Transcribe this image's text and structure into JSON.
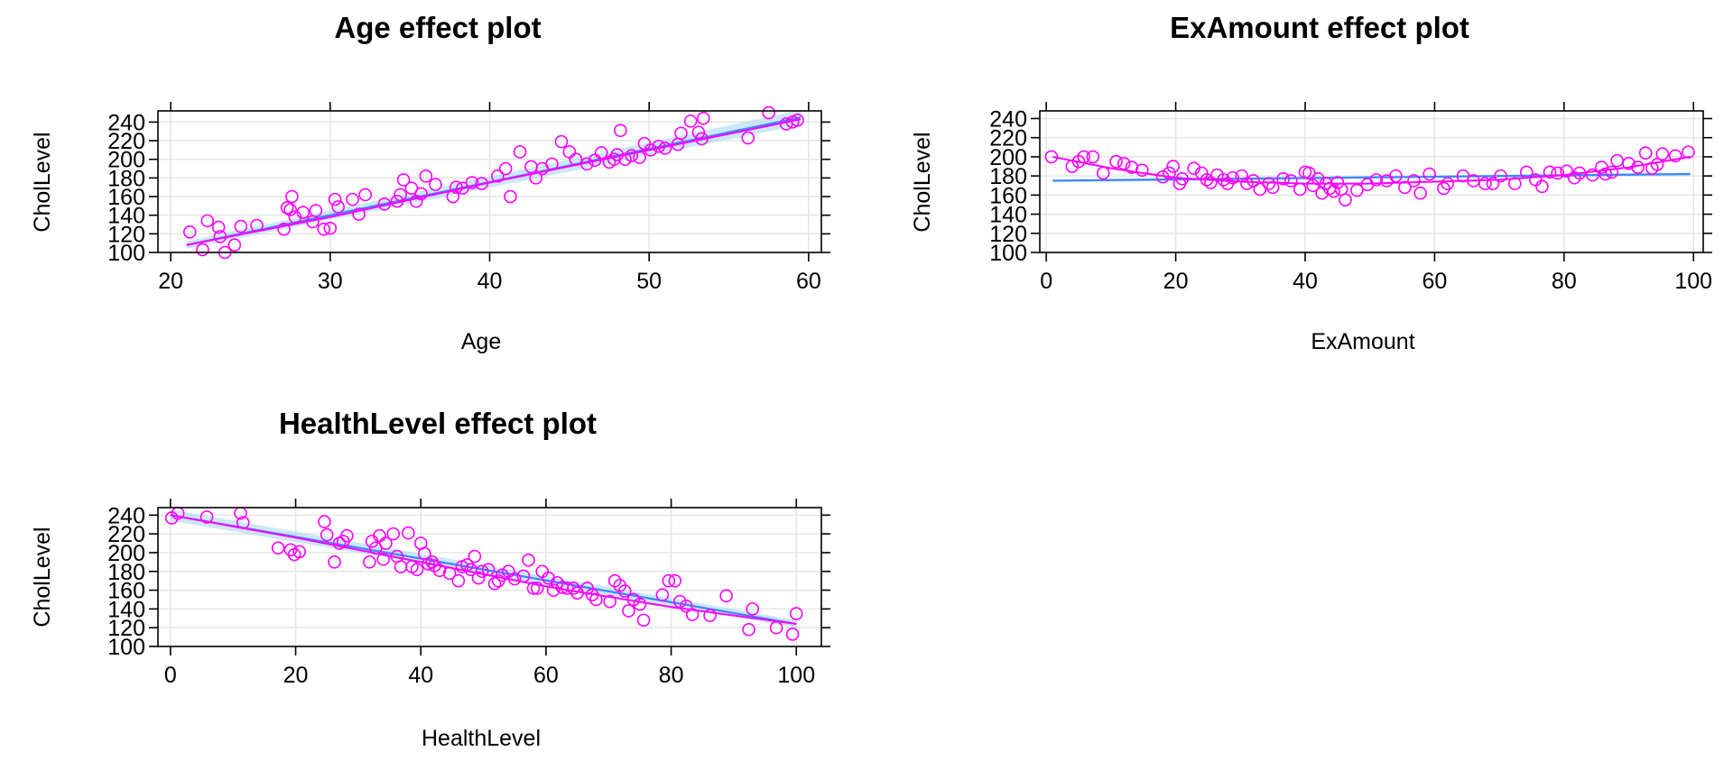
{
  "colors": {
    "points": "#ff00ff",
    "fit": "#3a87ff",
    "band": "#a8d8f0",
    "smooth": "#ff00ff",
    "grid": "#e5e5e5"
  },
  "chart_data": [
    {
      "type": "scatter",
      "title": "Age effect plot",
      "xlabel": "Age",
      "ylabel": "CholLevel",
      "xticks": [
        20,
        30,
        40,
        50,
        60
      ],
      "yticks": [
        100,
        120,
        140,
        160,
        180,
        200,
        220,
        240
      ],
      "xlim": [
        19.2,
        60.8
      ],
      "ylim": [
        100,
        252
      ],
      "grid": true,
      "fit": {
        "x": [
          21,
          59.5
        ],
        "y": [
          108,
          245
        ],
        "band": [
          4,
          8
        ]
      },
      "smooth": {
        "x": [
          21,
          30,
          40,
          50,
          59.5
        ],
        "y": [
          108,
          138,
          175,
          210,
          243
        ]
      },
      "points": {
        "x": [
          21.2,
          22.0,
          22.3,
          23.0,
          23.1,
          23.4,
          24.0,
          24.4,
          25.4,
          27.1,
          27.3,
          27.5,
          27.6,
          27.8,
          28.3,
          28.9,
          29.1,
          29.6,
          30.0,
          30.3,
          30.5,
          31.4,
          31.8,
          32.2,
          33.4,
          34.2,
          34.4,
          34.6,
          35.1,
          35.4,
          35.7,
          36.0,
          36.6,
          37.7,
          37.9,
          38.3,
          38.9,
          39.5,
          40.5,
          41.0,
          41.3,
          41.9,
          42.6,
          42.9,
          43.3,
          43.9,
          44.5,
          45.0,
          45.4,
          46.1,
          46.6,
          47.0,
          47.5,
          47.8,
          48.0,
          48.2,
          48.5,
          48.9,
          49.4,
          49.7,
          50.1,
          50.6,
          51.0,
          51.8,
          52.0,
          52.6,
          53.1,
          53.3,
          53.4,
          56.2,
          57.5,
          58.6,
          59.0,
          59.3
        ],
        "y": [
          122,
          103,
          134,
          127,
          117,
          100,
          108,
          128,
          129,
          125,
          148,
          146,
          160,
          138,
          143,
          133,
          145,
          125,
          126,
          157,
          149,
          157,
          141,
          162,
          152,
          155,
          162,
          178,
          169,
          155,
          163,
          182,
          173,
          160,
          170,
          169,
          175,
          174,
          182,
          190,
          160,
          208,
          192,
          180,
          190,
          195,
          219,
          208,
          200,
          195,
          199,
          207,
          197,
          200,
          205,
          231,
          200,
          204,
          202,
          217,
          210,
          214,
          212,
          216,
          228,
          241,
          229,
          222,
          244,
          223,
          250,
          238,
          240,
          242
        ]
      }
    },
    {
      "type": "scatter",
      "title": "ExAmount effect plot",
      "xlabel": "ExAmount",
      "ylabel": "CholLevel",
      "xticks": [
        0,
        20,
        40,
        60,
        80,
        100
      ],
      "yticks": [
        100,
        120,
        140,
        160,
        180,
        200,
        220,
        240
      ],
      "xlim": [
        -1,
        101.5
      ],
      "ylim": [
        100,
        248
      ],
      "grid": true,
      "fit": {
        "x": [
          1,
          99.5
        ],
        "y": [
          175,
          182
        ],
        "band": [
          1.5,
          1.5
        ]
      },
      "smooth": {
        "x": [
          1,
          10,
          20,
          30,
          40,
          50,
          60,
          70,
          80,
          90,
          99.5
        ],
        "y": [
          200,
          188,
          178,
          174,
          172,
          172,
          174,
          176,
          181,
          189,
          200
        ]
      },
      "points": {
        "x": [
          0.8,
          4.0,
          5.0,
          5.8,
          7.2,
          8.8,
          10.8,
          12.0,
          13.2,
          14.8,
          18.0,
          19.0,
          19.6,
          20.6,
          21.0,
          22.8,
          24.0,
          24.8,
          25.4,
          26.4,
          27.4,
          28.0,
          28.8,
          30.2,
          31.0,
          32.0,
          33.0,
          34.4,
          35.0,
          36.6,
          37.8,
          39.2,
          40.0,
          40.6,
          41.2,
          42.0,
          42.6,
          43.2,
          43.8,
          44.4,
          45.0,
          45.6,
          46.2,
          48.0,
          49.6,
          51.0,
          52.6,
          54.0,
          55.4,
          56.8,
          57.8,
          59.2,
          61.4,
          62.0,
          64.4,
          66.0,
          67.8,
          69.0,
          70.2,
          72.4,
          74.2,
          75.6,
          76.6,
          77.8,
          79.0,
          80.4,
          81.6,
          82.4,
          84.4,
          85.8,
          86.4,
          87.4,
          88.2,
          90.0,
          91.4,
          92.6,
          93.6,
          94.4,
          95.2,
          97.2,
          99.2
        ],
        "y": [
          200,
          190,
          195,
          200,
          200,
          183,
          195,
          193,
          189,
          186,
          179,
          183,
          190,
          172,
          177,
          188,
          183,
          176,
          173,
          181,
          176,
          172,
          178,
          180,
          172,
          175,
          166,
          172,
          168,
          177,
          175,
          166,
          184,
          183,
          170,
          177,
          162,
          172,
          167,
          164,
          173,
          166,
          155,
          165,
          171,
          176,
          175,
          180,
          168,
          175,
          162,
          182,
          167,
          172,
          180,
          175,
          172,
          172,
          180,
          172,
          184,
          176,
          169,
          184,
          183,
          185,
          178,
          183,
          181,
          189,
          182,
          184,
          196,
          193,
          189,
          204,
          188,
          192,
          203,
          201,
          205
        ]
      }
    },
    {
      "type": "scatter",
      "title": "HealthLevel effect plot",
      "xlabel": "HealthLevel",
      "ylabel": "CholLevel",
      "xticks": [
        0,
        20,
        40,
        60,
        80,
        100
      ],
      "yticks": [
        100,
        120,
        140,
        160,
        180,
        200,
        220,
        240
      ],
      "xlim": [
        -2,
        104
      ],
      "ylim": [
        100,
        248
      ],
      "grid": true,
      "fit": {
        "x": [
          0,
          100
        ],
        "y": [
          240,
          124
        ],
        "band": [
          6,
          4
        ]
      },
      "smooth": {
        "x": [
          0,
          20,
          40,
          60,
          80,
          100
        ],
        "y": [
          240,
          216,
          190,
          164,
          142,
          124
        ]
      },
      "points": {
        "x": [
          0.2,
          1.2,
          5.8,
          11.2,
          11.6,
          17.2,
          19.2,
          19.8,
          20.6,
          24.6,
          25.0,
          26.2,
          27.0,
          27.6,
          28.2,
          31.8,
          32.2,
          32.8,
          33.4,
          34.0,
          34.4,
          35.6,
          36.2,
          36.8,
          38.0,
          38.6,
          39.4,
          40.0,
          40.6,
          41.2,
          41.8,
          42.2,
          43.0,
          44.6,
          46.0,
          46.6,
          47.4,
          48.0,
          48.6,
          49.2,
          49.8,
          50.8,
          51.8,
          52.4,
          53.0,
          54.0,
          55.0,
          56.4,
          57.2,
          58.0,
          58.6,
          59.4,
          60.4,
          61.2,
          61.8,
          62.6,
          63.4,
          64.4,
          65.0,
          66.6,
          67.4,
          68.0,
          70.2,
          71.0,
          71.8,
          72.6,
          73.2,
          74.0,
          75.0,
          75.6,
          78.6,
          79.6,
          80.6,
          81.4,
          82.4,
          83.4,
          86.2,
          88.8,
          92.4,
          93.0,
          96.8,
          99.4,
          100.0
        ],
        "y": [
          237,
          242,
          238,
          242,
          232,
          205,
          203,
          198,
          201,
          233,
          219,
          190,
          210,
          212,
          218,
          190,
          212,
          205,
          218,
          193,
          210,
          220,
          196,
          185,
          221,
          185,
          182,
          210,
          199,
          188,
          190,
          186,
          181,
          178,
          170,
          185,
          187,
          182,
          196,
          173,
          180,
          182,
          167,
          170,
          176,
          180,
          172,
          175,
          192,
          162,
          162,
          180,
          173,
          160,
          168,
          163,
          162,
          162,
          157,
          162,
          155,
          150,
          148,
          170,
          165,
          159,
          138,
          150,
          145,
          128,
          155,
          170,
          170,
          148,
          143,
          134,
          133,
          154,
          118,
          140,
          120,
          113,
          135
        ]
      }
    }
  ]
}
